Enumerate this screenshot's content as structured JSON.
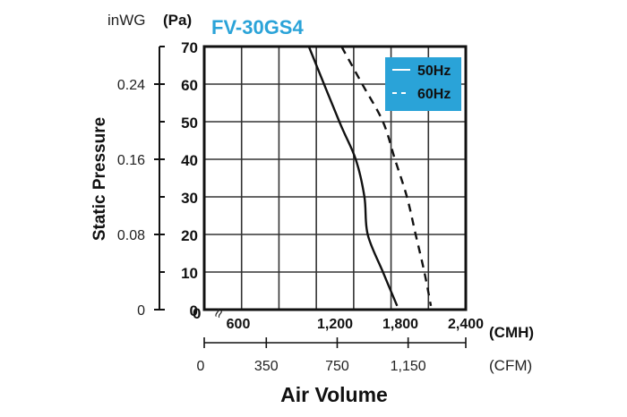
{
  "chart_data": {
    "type": "line",
    "title": "FV-30GS4",
    "xlabel": "Air Volume",
    "ylabel": "Static Pressure",
    "x_unit_primary": "(CMH)",
    "x_unit_secondary": "(CFM)",
    "y_unit_left": "inWG",
    "y_unit_right": "(Pa)",
    "xlim": [
      0,
      2400
    ],
    "ylim": [
      0,
      70
    ],
    "y_ticks_pa": [
      "0",
      "10",
      "20",
      "30",
      "40",
      "50",
      "60",
      "70"
    ],
    "y_ticks_inwg": [
      "0",
      "0.08",
      "0.16",
      "0.24"
    ],
    "y_ticks_inwg_pa_values": [
      0,
      20,
      40,
      60
    ],
    "x_ticks_cmh": [
      {
        "label": "600",
        "value": 600
      },
      {
        "label": "1,200",
        "value": 1200
      },
      {
        "label": "1,800",
        "value": 1800
      },
      {
        "label": "2,400",
        "value": 2400
      }
    ],
    "x_zero_label": "0",
    "x_ticks_cfm": [
      {
        "label": "0",
        "value": 0
      },
      {
        "label": "350",
        "value": 350
      },
      {
        "label": "750",
        "value": 750
      },
      {
        "label": "1,150",
        "value": 1150
      }
    ],
    "cfm_axis_max": 1475,
    "axis_break_symbol": "≈",
    "legend_position": "top-right",
    "legend_color": "#2aa3d8",
    "series": [
      {
        "name": "50Hz",
        "style": "solid",
        "points": [
          [
            960,
            70
          ],
          [
            1240,
            50
          ],
          [
            1390,
            40
          ],
          [
            1470,
            30
          ],
          [
            1500,
            20
          ],
          [
            1640,
            10
          ],
          [
            1770,
            1
          ]
        ]
      },
      {
        "name": "60Hz",
        "style": "dashed",
        "points": [
          [
            1260,
            70
          ],
          [
            1450,
            60
          ],
          [
            1640,
            50
          ],
          [
            1750,
            40
          ],
          [
            1860,
            30
          ],
          [
            1940,
            20
          ],
          [
            2020,
            10
          ],
          [
            2080,
            1
          ]
        ]
      }
    ]
  }
}
